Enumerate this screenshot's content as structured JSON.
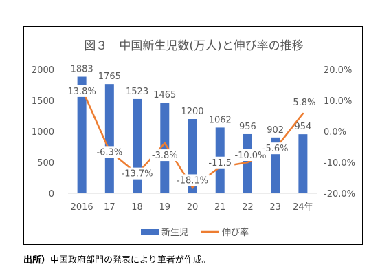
{
  "chart_data": {
    "type": "bar",
    "title": "図３　中国新生児数(万人)と伸び率の推移",
    "categories": [
      "2016",
      "17",
      "18",
      "19",
      "20",
      "21",
      "22",
      "23",
      "24年"
    ],
    "series": [
      {
        "name": "新生児",
        "type": "bar",
        "axis": "left",
        "color": "#4472C4",
        "values": [
          1883,
          1765,
          1523,
          1465,
          1200,
          1062,
          956,
          902,
          954
        ],
        "labels": [
          "1883",
          "1765",
          "1523",
          "1465",
          "1200",
          "1062",
          "956",
          "902",
          "954"
        ]
      },
      {
        "name": "伸び率",
        "type": "line",
        "axis": "right",
        "color": "#ED7D31",
        "values": [
          13.8,
          -6.3,
          -13.7,
          -3.8,
          -18.1,
          -11.5,
          -10.0,
          -5.6,
          5.8
        ],
        "labels": [
          "13.8%",
          "-6.3%",
          "-13.7%",
          "-3.8%",
          "-18.1%",
          "-11.5",
          "-10.0%",
          "-5.6%",
          "5.8%"
        ]
      }
    ],
    "y_left": {
      "min": 0,
      "max": 2000,
      "ticks": [
        "0",
        "500",
        "1000",
        "1500",
        "2000"
      ],
      "tick_values": [
        0,
        500,
        1000,
        1500,
        2000
      ]
    },
    "y_right": {
      "min": -20,
      "max": 20,
      "ticks": [
        "-20.0%",
        "-10.0%",
        "0.0%",
        "10.0%",
        "20.0%"
      ],
      "tick_values": [
        -20,
        -10,
        0,
        10,
        20
      ]
    },
    "grid": false,
    "legend_position": "bottom"
  },
  "source": {
    "prefix": "出所）",
    "text": "中国政府部門の発表により筆者が作成。"
  }
}
